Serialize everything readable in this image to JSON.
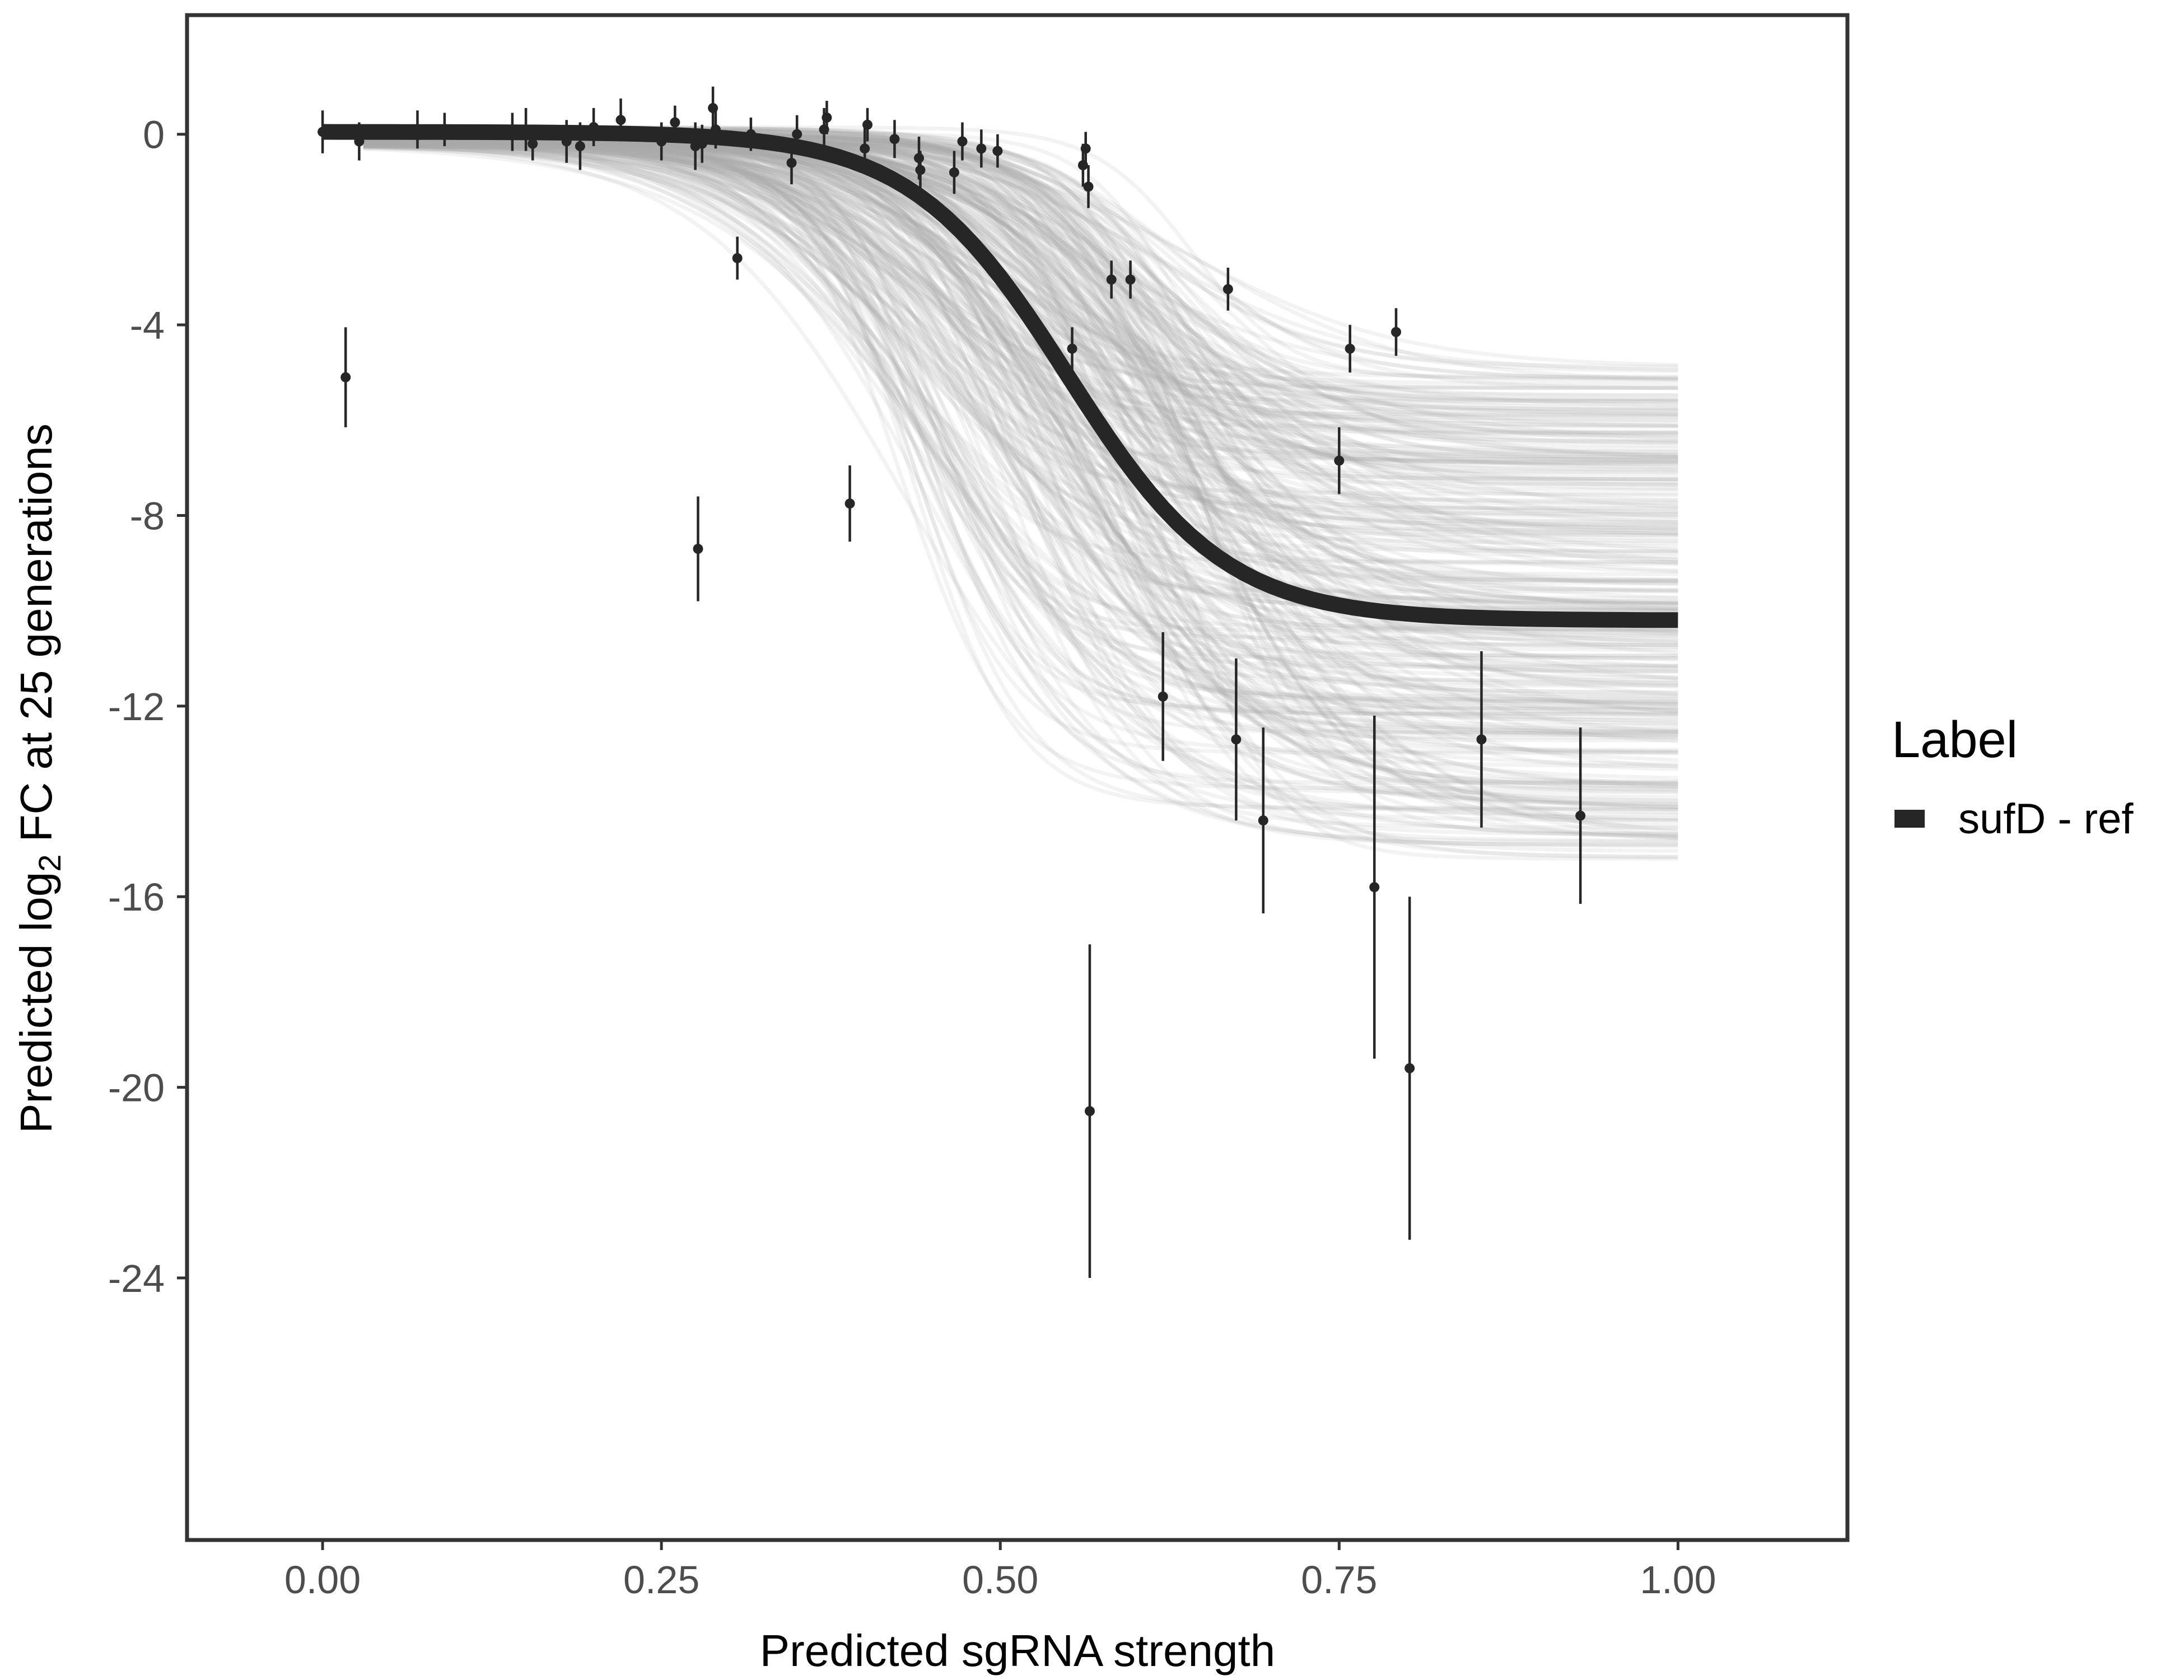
{
  "chart_data": {
    "type": "scatter",
    "title": "",
    "xlabel": "Predicted sgRNA strength",
    "ylabel": {
      "prefix": "Predicted  log",
      "subscript": "2",
      "suffix": " FC at 25 generations"
    },
    "xlim": [
      -0.1,
      1.125
    ],
    "ylim": [
      -29.5,
      2.5
    ],
    "x_ticks": [
      {
        "value": 0,
        "label": "0.00"
      },
      {
        "value": 0.25,
        "label": "0.25"
      },
      {
        "value": 0.5,
        "label": "0.50"
      },
      {
        "value": 0.75,
        "label": "0.75"
      },
      {
        "value": 1.0,
        "label": "1.00"
      }
    ],
    "y_ticks": [
      {
        "value": 0,
        "label": "0"
      },
      {
        "value": -4,
        "label": "-4"
      },
      {
        "value": -8,
        "label": "-8"
      },
      {
        "value": -12,
        "label": "-12"
      },
      {
        "value": -16,
        "label": "-16"
      },
      {
        "value": -20,
        "label": "-20"
      },
      {
        "value": -24,
        "label": "-24"
      }
    ],
    "grid": false,
    "fit_curve": {
      "name": "sufD - ref",
      "color": "#262626",
      "model": "logistic",
      "max": 0.05,
      "min": -10.2,
      "midpoint": 0.55,
      "slope": 0.058,
      "x_range": [
        0,
        1
      ]
    },
    "posterior_draws": {
      "color": "#aaaaaa",
      "count": 320,
      "max_range": [
        -0.25,
        0.15
      ],
      "min_range": [
        -15.3,
        -4.8
      ],
      "midpoint_range": [
        0.42,
        0.66
      ],
      "slope_range": [
        0.035,
        0.09
      ]
    },
    "points": [
      {
        "x": 0.0,
        "y": 0.05,
        "err": 0.45
      },
      {
        "x": 0.017,
        "y": -5.1,
        "err": 1.05
      },
      {
        "x": 0.027,
        "y": -0.15,
        "err": 0.4
      },
      {
        "x": 0.07,
        "y": 0.1,
        "err": 0.4
      },
      {
        "x": 0.09,
        "y": 0.1,
        "err": 0.35
      },
      {
        "x": 0.14,
        "y": 0.05,
        "err": 0.4
      },
      {
        "x": 0.15,
        "y": 0.1,
        "err": 0.45
      },
      {
        "x": 0.155,
        "y": -0.2,
        "err": 0.35
      },
      {
        "x": 0.18,
        "y": -0.15,
        "err": 0.45
      },
      {
        "x": 0.19,
        "y": -0.25,
        "err": 0.5
      },
      {
        "x": 0.2,
        "y": 0.15,
        "err": 0.4
      },
      {
        "x": 0.22,
        "y": 0.3,
        "err": 0.45
      },
      {
        "x": 0.25,
        "y": -0.15,
        "err": 0.4
      },
      {
        "x": 0.26,
        "y": 0.25,
        "err": 0.35
      },
      {
        "x": 0.275,
        "y": -0.25,
        "err": 0.5
      },
      {
        "x": 0.277,
        "y": -8.7,
        "err": 1.1
      },
      {
        "x": 0.28,
        "y": -0.2,
        "err": 0.4
      },
      {
        "x": 0.288,
        "y": 0.55,
        "err": 0.45
      },
      {
        "x": 0.29,
        "y": 0.1,
        "err": 0.4
      },
      {
        "x": 0.306,
        "y": -2.6,
        "err": 0.45
      },
      {
        "x": 0.316,
        "y": 0.0,
        "err": 0.35
      },
      {
        "x": 0.346,
        "y": -0.6,
        "err": 0.45
      },
      {
        "x": 0.35,
        "y": 0.0,
        "err": 0.4
      },
      {
        "x": 0.37,
        "y": 0.1,
        "err": 0.45
      },
      {
        "x": 0.372,
        "y": 0.35,
        "err": 0.35
      },
      {
        "x": 0.389,
        "y": -7.75,
        "err": 0.8
      },
      {
        "x": 0.4,
        "y": -0.3,
        "err": 0.45
      },
      {
        "x": 0.402,
        "y": 0.2,
        "err": 0.35
      },
      {
        "x": 0.422,
        "y": -0.1,
        "err": 0.4
      },
      {
        "x": 0.44,
        "y": -0.5,
        "err": 0.45
      },
      {
        "x": 0.441,
        "y": -0.75,
        "err": 0.4
      },
      {
        "x": 0.466,
        "y": -0.8,
        "err": 0.45
      },
      {
        "x": 0.472,
        "y": -0.15,
        "err": 0.4
      },
      {
        "x": 0.486,
        "y": -0.3,
        "err": 0.4
      },
      {
        "x": 0.498,
        "y": -0.35,
        "err": 0.35
      },
      {
        "x": 0.553,
        "y": -4.5,
        "err": 0.45
      },
      {
        "x": 0.561,
        "y": -0.65,
        "err": 0.45
      },
      {
        "x": 0.563,
        "y": -0.3,
        "err": 0.35
      },
      {
        "x": 0.565,
        "y": -1.1,
        "err": 0.45
      },
      {
        "x": 0.566,
        "y": -20.5,
        "err": 3.5
      },
      {
        "x": 0.582,
        "y": -3.05,
        "err": 0.4
      },
      {
        "x": 0.596,
        "y": -3.05,
        "err": 0.4
      },
      {
        "x": 0.62,
        "y": -11.8,
        "err": 1.35
      },
      {
        "x": 0.668,
        "y": -3.25,
        "err": 0.45
      },
      {
        "x": 0.674,
        "y": -12.7,
        "err": 1.7
      },
      {
        "x": 0.694,
        "y": -14.4,
        "err": 1.95
      },
      {
        "x": 0.75,
        "y": -6.85,
        "err": 0.7
      },
      {
        "x": 0.758,
        "y": -4.5,
        "err": 0.5
      },
      {
        "x": 0.776,
        "y": -15.8,
        "err": 3.6
      },
      {
        "x": 0.792,
        "y": -4.15,
        "err": 0.5
      },
      {
        "x": 0.802,
        "y": -19.6,
        "err": 3.6
      },
      {
        "x": 0.855,
        "y": -12.7,
        "err": 1.85
      },
      {
        "x": 0.928,
        "y": -14.3,
        "err": 1.85
      }
    ],
    "legend": {
      "title": "Label",
      "entries": [
        {
          "label": "sufD - ref",
          "color": "#262626"
        }
      ],
      "position": "right"
    }
  }
}
